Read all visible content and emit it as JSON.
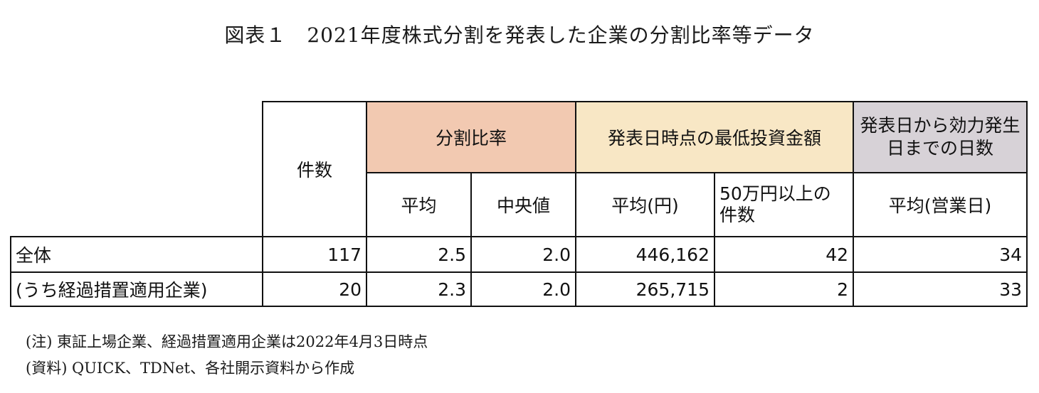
{
  "title": "図表１　2021年度株式分割を発表した企業の分割比率等データ",
  "table": {
    "header": {
      "count": "件数",
      "split_ratio": "分割比率",
      "min_investment": "発表日時点の最低投資金額",
      "days_to_effect": "発表日から効力発生日までの日数",
      "avg": "平均",
      "median": "中央値",
      "avg_yen": "平均(円)",
      "count_over_500k": "50万円以上の件数",
      "avg_business_days": "平均(営業日)"
    },
    "rows": [
      {
        "label": "全体",
        "count": "117",
        "avg_ratio": "2.5",
        "median_ratio": "2.0",
        "avg_min_invest": "446,162",
        "over_500k": "42",
        "avg_days": "34"
      },
      {
        "label": "(うち経過措置適用企業)",
        "count": "20",
        "avg_ratio": "2.3",
        "median_ratio": "2.0",
        "avg_min_invest": "265,715",
        "over_500k": "2",
        "avg_days": "33"
      }
    ]
  },
  "notes": {
    "note1": "(注) 東証上場企業、経過措置適用企業は2022年4月3日時点",
    "note2": "(資料) QUICK、TDNet、各社開示資料から作成"
  },
  "colors": {
    "split_ratio_bg": "#f2c9b1",
    "min_investment_bg": "#f8e7c5",
    "days_bg": "#d7d2d7"
  }
}
